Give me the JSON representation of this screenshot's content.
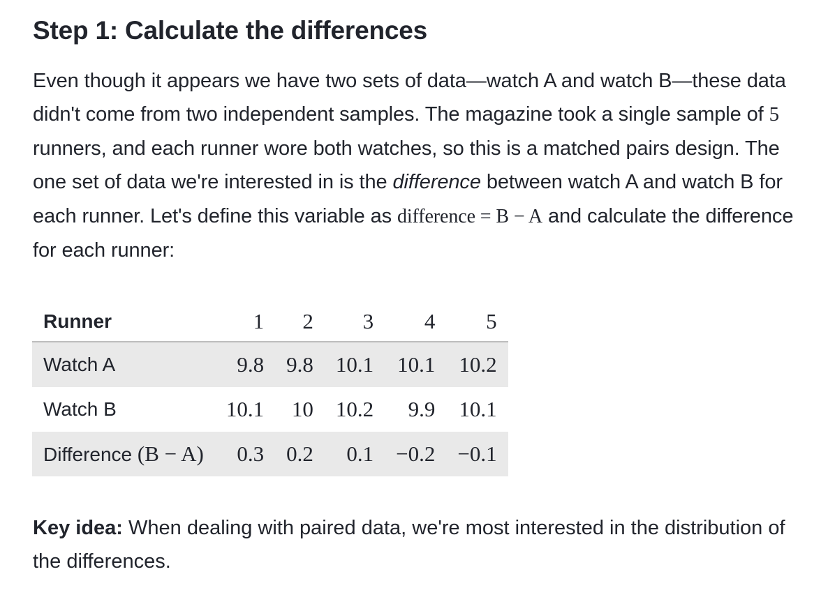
{
  "heading": "Step 1: Calculate the differences",
  "paragraph": {
    "part1": "Even though it appears we have two sets of data—watch A and watch B—these data didn't come from two independent samples. The magazine took a single sample of ",
    "sample_size": "5",
    "part2": " runners, and each runner wore both watches, so this is a matched pairs design. The one set of data we're interested in is the ",
    "emphasis": "difference",
    "part3": " between watch A and watch B for each runner. Let's define this variable as ",
    "formula": "difference = B − A",
    "part4": " and calculate the difference for each runner:"
  },
  "table": {
    "header_label": "Runner",
    "runners": [
      "1",
      "2",
      "3",
      "4",
      "5"
    ],
    "rows": [
      {
        "label": "Watch A",
        "suffix": "",
        "values": [
          "9.8",
          "9.8",
          "10.1",
          "10.1",
          "10.2"
        ]
      },
      {
        "label": "Watch B",
        "suffix": "",
        "values": [
          "10.1",
          "10",
          "10.2",
          "9.9",
          "10.1"
        ]
      },
      {
        "label": "Difference",
        "suffix": "(B − A)",
        "values": [
          "0.3",
          "0.2",
          "0.1",
          "−0.2",
          "−0.1"
        ]
      }
    ]
  },
  "key_idea": {
    "label": "Key idea:",
    "text": " When dealing with paired data, we're most interested in the distribution of the differences."
  }
}
